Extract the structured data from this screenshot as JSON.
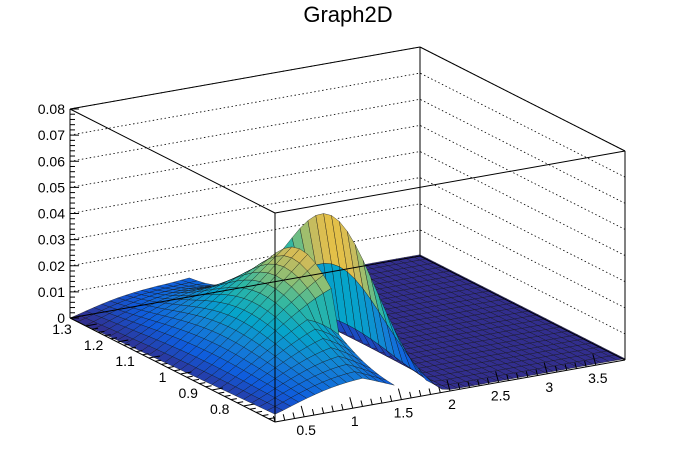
{
  "chart_data": {
    "type": "surface3d",
    "title": "Graph2D",
    "x": {
      "range": [
        0.2,
        3.8
      ],
      "ticks": [
        "0.5",
        "1",
        "1.5",
        "2",
        "2.5",
        "3",
        "3.5"
      ]
    },
    "y": {
      "range": [
        0.7,
        1.35
      ],
      "ticks": [
        "0.8",
        "0.9",
        "1",
        "1.1",
        "1.2",
        "1.3"
      ]
    },
    "z": {
      "range": [
        0,
        0.08
      ],
      "ticks": [
        "0",
        "0.01",
        "0.02",
        "0.03",
        "0.04",
        "0.05",
        "0.06",
        "0.07",
        "0.08"
      ]
    },
    "grid": true,
    "palette": [
      "#352a87",
      "#0f5cdd",
      "#1481d6",
      "#06a4ca",
      "#2eb7a4",
      "#87bf77",
      "#d1bb59",
      "#fec832",
      "#f9fb0e"
    ],
    "peak": {
      "x": 1.75,
      "y": 1.0,
      "z": 0.05
    },
    "notch_x": [
      1.5,
      1.68
    ]
  }
}
